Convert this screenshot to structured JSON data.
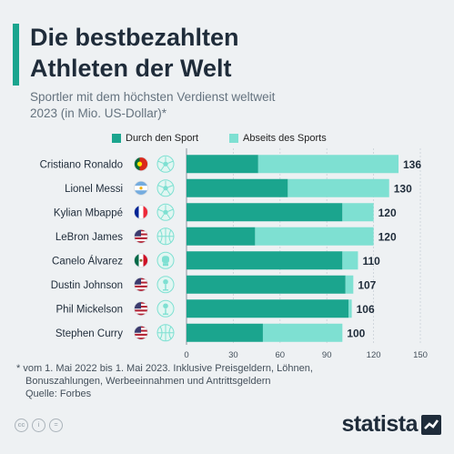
{
  "header": {
    "title_line1": "Die bestbezahlten",
    "title_line2": "Athleten der Welt",
    "subtitle_line1": "Sportler mit dem höchsten Verdienst weltweit",
    "subtitle_line2": "2023 (in Mio. US-Dollar)*"
  },
  "legend": {
    "series1": "Durch den Sport",
    "series2": "Abseits des Sports"
  },
  "colors": {
    "accent": "#1ba58e",
    "sport": "#1ba58e",
    "offsport": "#7ee0d2",
    "title": "#1f2c3a"
  },
  "chart_data": {
    "type": "bar",
    "orientation": "horizontal",
    "stacked": true,
    "categories": [
      "Cristiano Ronaldo",
      "Lionel Messi",
      "Kylian Mbappé",
      "LeBron James",
      "Canelo Álvarez",
      "Dustin Johnson",
      "Phil Mickelson",
      "Stephen Curry"
    ],
    "countries": [
      "Portugal",
      "Argentina",
      "France",
      "USA",
      "Mexico",
      "USA",
      "USA",
      "USA"
    ],
    "sports_icons": [
      "football-icon",
      "football-icon",
      "football-icon",
      "basketball-icon",
      "boxing-glove-icon",
      "golf-icon",
      "golf-icon",
      "basketball-icon"
    ],
    "series": [
      {
        "name": "Durch den Sport",
        "values": [
          46,
          65,
          100,
          44,
          100,
          102,
          104,
          49
        ]
      },
      {
        "name": "Abseits des Sports",
        "values": [
          90,
          65,
          20,
          76,
          10,
          5,
          2,
          51
        ]
      }
    ],
    "totals": [
      "136",
      "130",
      "120",
      "120",
      "110",
      "107",
      "106",
      "100"
    ],
    "xlim": [
      0,
      150
    ],
    "xticks": [
      "0",
      "30",
      "60",
      "90",
      "120",
      "150"
    ],
    "grid": true,
    "legend_position": "top"
  },
  "footnote": {
    "line1": "* vom 1. Mai 2022 bis 1. Mai 2023. Inklusive Preisgeldern, Löhnen,",
    "line2": "Bonuszahlungen, Werbeeinnahmen und Antrittsgeldern",
    "source": "Quelle: Forbes"
  },
  "brand": {
    "name": "statista"
  }
}
